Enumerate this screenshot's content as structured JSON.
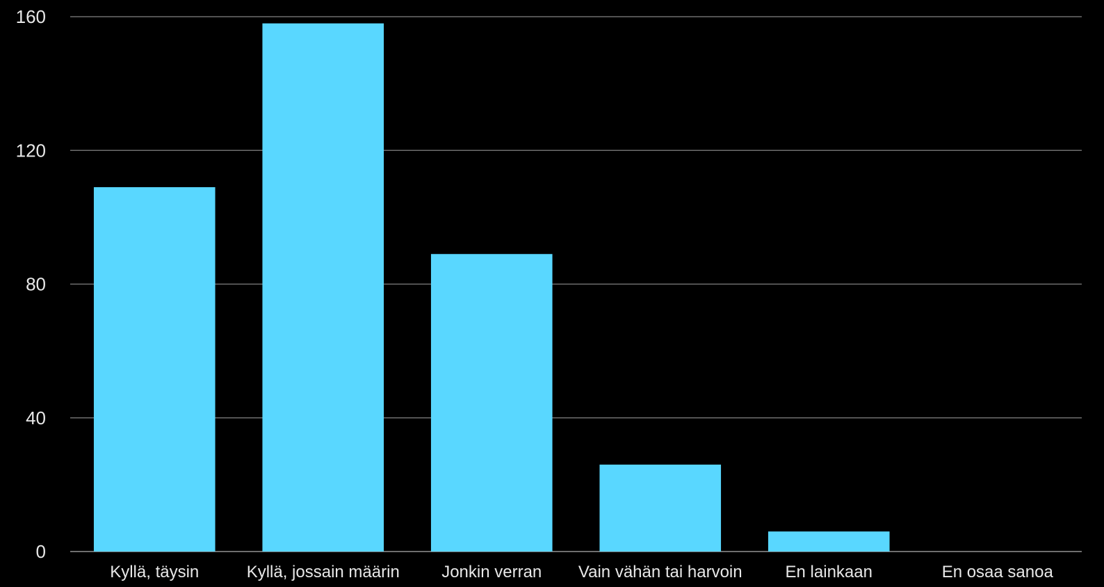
{
  "chart_data": {
    "type": "bar",
    "categories": [
      "Kyllä, täysin",
      "Kyllä, jossain määrin",
      "Jonkin verran",
      "Vain vähän tai harvoin",
      "En lainkaan",
      "En osaa sanoa"
    ],
    "values": [
      109,
      158,
      89,
      26,
      6,
      0
    ],
    "ylim": [
      0,
      160
    ],
    "yticks": [
      0,
      40,
      80,
      120,
      160
    ],
    "grid": true,
    "legend": "none",
    "colors": {
      "bar": "#59d7ff",
      "background": "#000000",
      "grid": "#6e6e6e",
      "text": "#e8e8e8"
    }
  }
}
